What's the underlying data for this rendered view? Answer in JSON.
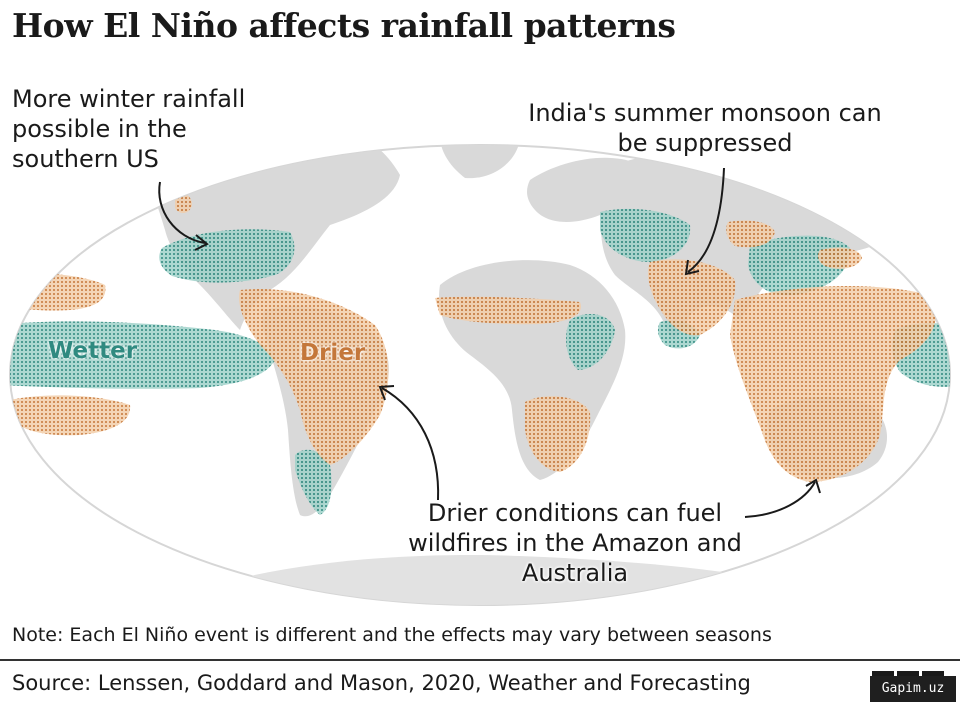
{
  "title": "How El Niño affects rainfall patterns",
  "annotations": {
    "us": "More winter rainfall possible in the southern US",
    "india": "India's summer monsoon can be suppressed",
    "amazon": "Drier conditions can fuel wildfires in the Amazon and Australia"
  },
  "legend": {
    "wetter": "Wetter",
    "drier": "Drier"
  },
  "note": "Note: Each El Niño event is different and the effects may vary between seasons",
  "source": "Source: Lenssen, Goddard and Mason, 2020, Weather and Forecasting",
  "brand": [
    "B",
    "B",
    "C"
  ],
  "watermark": "Gapim.uz",
  "colors": {
    "wetter": "#3e9a8f",
    "drier": "#d8955a",
    "land": "#d8d8d8",
    "ocean": "#ffffff"
  }
}
